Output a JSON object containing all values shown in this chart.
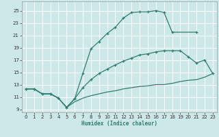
{
  "xlabel": "Humidex (Indice chaleur)",
  "bg_color": "#cce8e8",
  "grid_color": "#ffffff",
  "line_color": "#2e7d6e",
  "xlim": [
    -0.5,
    23.5
  ],
  "ylim": [
    8.5,
    26.5
  ],
  "xticks": [
    0,
    1,
    2,
    3,
    4,
    5,
    6,
    7,
    8,
    9,
    10,
    11,
    12,
    13,
    14,
    15,
    16,
    17,
    18,
    19,
    20,
    21,
    22,
    23
  ],
  "yticks": [
    9,
    11,
    13,
    15,
    17,
    19,
    21,
    23,
    25
  ],
  "curve1_x": [
    0,
    1,
    2,
    3,
    4,
    5,
    6,
    7,
    8,
    9,
    10,
    11,
    12,
    13,
    14,
    15,
    16,
    17,
    18,
    21
  ],
  "curve1_y": [
    12.3,
    12.3,
    11.5,
    11.5,
    10.8,
    9.3,
    10.7,
    14.8,
    18.8,
    20.0,
    21.3,
    22.3,
    23.8,
    24.7,
    24.8,
    24.8,
    25.0,
    24.7,
    21.5,
    21.5
  ],
  "curve2_x": [
    0,
    1,
    2,
    3,
    4,
    5,
    6,
    7,
    8,
    9,
    10,
    11,
    12,
    13,
    14,
    15,
    16,
    17,
    18,
    19,
    20,
    21,
    22,
    23
  ],
  "curve2_y": [
    12.3,
    12.3,
    11.5,
    11.5,
    10.8,
    9.3,
    10.7,
    12.5,
    13.8,
    14.8,
    15.5,
    16.2,
    16.8,
    17.3,
    17.8,
    18.0,
    18.3,
    18.5,
    18.5,
    18.5,
    17.5,
    16.5,
    17.0,
    14.8
  ],
  "curve3_x": [
    0,
    1,
    2,
    3,
    4,
    5,
    6,
    7,
    8,
    9,
    10,
    11,
    12,
    13,
    14,
    15,
    16,
    17,
    18,
    19,
    20,
    21,
    22,
    23
  ],
  "curve3_y": [
    12.3,
    12.3,
    11.5,
    11.5,
    10.8,
    9.3,
    10.2,
    10.8,
    11.2,
    11.5,
    11.8,
    12.0,
    12.3,
    12.5,
    12.7,
    12.8,
    13.0,
    13.0,
    13.2,
    13.5,
    13.7,
    13.8,
    14.2,
    14.8
  ]
}
